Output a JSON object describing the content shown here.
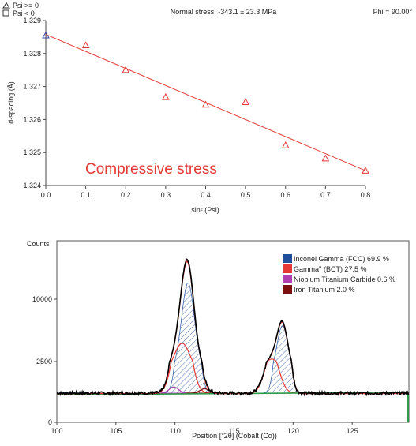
{
  "chart_data": [
    {
      "type": "scatter",
      "header": {
        "legend_ge": "Psi >= 0",
        "legend_lt": "Psi <  0",
        "title": "Normal stress: -343.1 ± 23.3 MPa",
        "phi": "Phi = 90.00°"
      },
      "xlabel": "sin² (Psi)",
      "ylabel": "d-spacing (Å)",
      "annotation": "Compressive stress",
      "xlim": [
        0.0,
        0.8
      ],
      "ylim": [
        1.324,
        1.329
      ],
      "x_ticks": [
        "0.0",
        "0.1",
        "0.2",
        "0.3",
        "0.4",
        "0.5",
        "0.6",
        "0.7",
        "0.8"
      ],
      "y_ticks": [
        "1.324",
        "1.325",
        "1.326",
        "1.327",
        "1.328",
        "1.329"
      ],
      "points": [
        {
          "x": 0.0,
          "y": 1.32855,
          "group": "Psi >= 0"
        },
        {
          "x": 0.1,
          "y": 1.32825,
          "group": "Psi >= 0"
        },
        {
          "x": 0.2,
          "y": 1.3275,
          "group": "Psi >= 0"
        },
        {
          "x": 0.3,
          "y": 1.32668,
          "group": "Psi >= 0"
        },
        {
          "x": 0.4,
          "y": 1.32645,
          "group": "Psi >= 0"
        },
        {
          "x": 0.5,
          "y": 1.32653,
          "group": "Psi >= 0"
        },
        {
          "x": 0.6,
          "y": 1.32522,
          "group": "Psi >= 0"
        },
        {
          "x": 0.7,
          "y": 1.32482,
          "group": "Psi >= 0"
        },
        {
          "x": 0.8,
          "y": 1.32445,
          "group": "Psi >= 0"
        }
      ],
      "fit_line": {
        "x": [
          0.0,
          0.8
        ],
        "y": [
          1.32858,
          1.32445
        ]
      },
      "colors": {
        "data": "#e53935",
        "highlight": "#3949ab",
        "line": "#e53935",
        "annotation": "#e53935"
      }
    },
    {
      "type": "line",
      "ylabel": "Counts",
      "xlabel": "Position [°2θ] (Cobalt (Co))",
      "xlim": [
        100,
        129.8
      ],
      "ylim": [
        0,
        12500
      ],
      "x_ticks": [
        "100",
        "105",
        "110",
        "115",
        "120",
        "125"
      ],
      "y_ticks": [
        "0",
        "2500",
        "10000"
      ],
      "legend": [
        {
          "label": "Inconel Gamma (FCC) 69.9 %",
          "color": "#1f4e9a"
        },
        {
          "label": "Gamma'' (BCT) 27.5 %",
          "color": "#e53935"
        },
        {
          "label": "Niobium Titanium Carbide 0.6 %",
          "color": "#b040b0"
        },
        {
          "label": "Iron Titanium 2.0 %",
          "color": "#7b1010"
        }
      ],
      "background": 1200,
      "peaks": [
        {
          "phase": "Inconel Gamma (FCC)",
          "center": 111.1,
          "height": 10700,
          "width": 0.55
        },
        {
          "phase": "Inconel Gamma (FCC)",
          "center": 119.1,
          "height": 5600,
          "width": 0.45
        },
        {
          "phase": "Gamma'' (BCT)",
          "center": 110.6,
          "height": 3500,
          "width": 0.65
        },
        {
          "phase": "Gamma'' (BCT)",
          "center": 118.2,
          "height": 1600,
          "width": 0.6
        },
        {
          "phase": "Niobium Titanium Carbide",
          "center": 109.9,
          "height": 250,
          "width": 0.4
        },
        {
          "phase": "Iron Titanium",
          "center": 112.5,
          "height": 180,
          "width": 0.4
        }
      ],
      "colors": {
        "observed": "#000000",
        "background": "#2e9a4a",
        "fit": "#e53935",
        "hatch": "#1f4e9a"
      }
    }
  ]
}
